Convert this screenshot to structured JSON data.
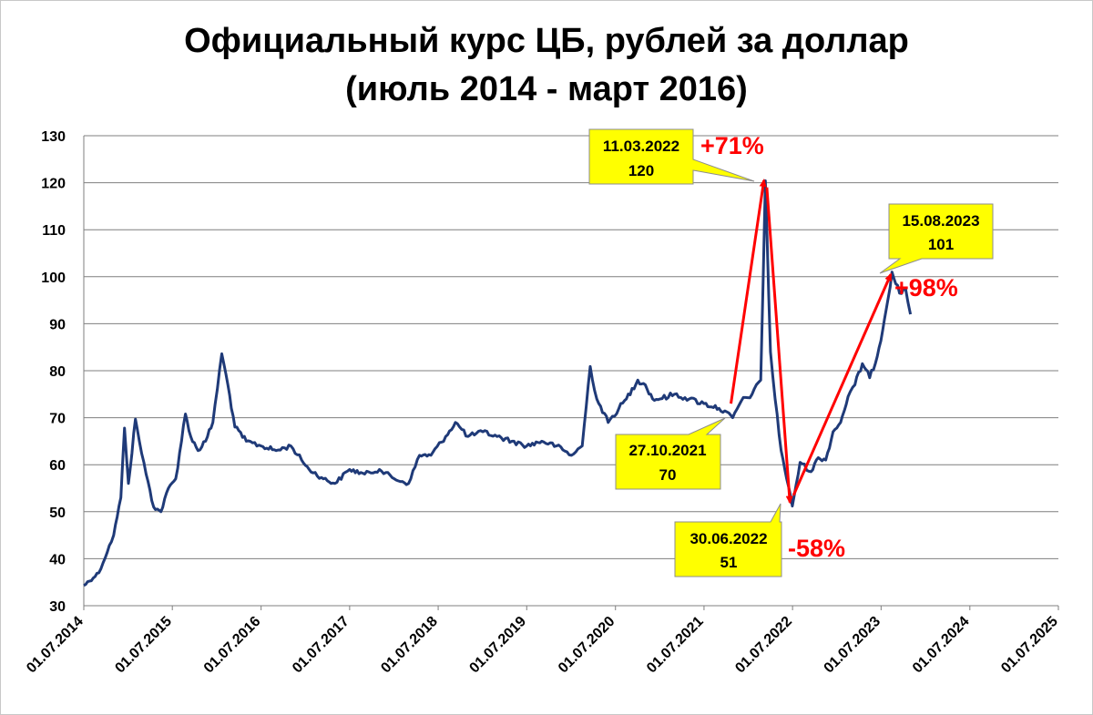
{
  "chart_data": {
    "type": "line",
    "title": "Официальный курс ЦБ, рублей за доллар",
    "subtitle": "(июль 2014 - март 2016)",
    "xlabel": "",
    "ylabel": "",
    "ylim": [
      30,
      130
    ],
    "yticks": [
      30,
      40,
      50,
      60,
      70,
      80,
      90,
      100,
      110,
      120,
      130
    ],
    "xlim": [
      "2014-07-01",
      "2025-07-01"
    ],
    "xtick_labels": [
      "01.07.2014",
      "01.07.2015",
      "01.07.2016",
      "01.07.2017",
      "01.07.2018",
      "01.07.2019",
      "01.07.2020",
      "01.07.2021",
      "01.07.2022",
      "01.07.2023",
      "01.07.2024",
      "01.07.2025"
    ],
    "grid": true,
    "line_color": "#1f3a78",
    "series": [
      {
        "name": "",
        "x": [
          "2014-07-01",
          "2014-09-01",
          "2014-11-01",
          "2014-12-01",
          "2014-12-16",
          "2015-01-01",
          "2015-01-30",
          "2015-02-15",
          "2015-03-15",
          "2015-04-15",
          "2015-05-15",
          "2015-06-15",
          "2015-07-15",
          "2015-08-24",
          "2015-09-15",
          "2015-10-15",
          "2015-11-15",
          "2015-12-15",
          "2016-01-21",
          "2016-02-15",
          "2016-03-15",
          "2016-05-01",
          "2016-07-01",
          "2016-09-01",
          "2016-11-01",
          "2016-12-15",
          "2017-01-15",
          "2017-03-15",
          "2017-05-01",
          "2017-07-01",
          "2017-09-01",
          "2017-11-01",
          "2018-01-01",
          "2018-03-01",
          "2018-04-15",
          "2018-06-01",
          "2018-08-01",
          "2018-09-10",
          "2018-11-01",
          "2019-01-01",
          "2019-03-01",
          "2019-05-01",
          "2019-07-01",
          "2019-09-01",
          "2019-11-01",
          "2020-01-01",
          "2020-02-15",
          "2020-03-19",
          "2020-04-15",
          "2020-06-01",
          "2020-07-15",
          "2020-08-15",
          "2020-10-01",
          "2020-11-01",
          "2020-12-01",
          "2021-01-01",
          "2021-03-01",
          "2021-05-01",
          "2021-07-01",
          "2021-09-01",
          "2021-10-27",
          "2021-12-01",
          "2022-01-15",
          "2022-02-20",
          "2022-03-11",
          "2022-04-01",
          "2022-04-20",
          "2022-05-15",
          "2022-06-30",
          "2022-08-01",
          "2022-09-15",
          "2022-10-15",
          "2022-11-15",
          "2022-12-15",
          "2023-01-15",
          "2023-02-15",
          "2023-03-15",
          "2023-04-15",
          "2023-05-15",
          "2023-06-15",
          "2023-07-15",
          "2023-08-15",
          "2023-09-15",
          "2023-10-10",
          "2023-10-30"
        ],
        "y": [
          34.3,
          37,
          45,
          53,
          67.8,
          56,
          69.7,
          65,
          58,
          51,
          50,
          55,
          57,
          70.8,
          66,
          63,
          65,
          69,
          83.6,
          77,
          68,
          65,
          64,
          63,
          64,
          61,
          59,
          57,
          56,
          59,
          58,
          59,
          57,
          56,
          62,
          62,
          66,
          69,
          66,
          67,
          66,
          65,
          64,
          65,
          64,
          62,
          64,
          80.9,
          74,
          69,
          72,
          74,
          78,
          77,
          74,
          74,
          75,
          74,
          73,
          72,
          70,
          73.5,
          75,
          78,
          120.4,
          84,
          74,
          63,
          51.2,
          60.5,
          58.5,
          61.5,
          61,
          67,
          69,
          74.5,
          77,
          81.5,
          78.5,
          83,
          91,
          101,
          96.5,
          97.5,
          92
        ]
      }
    ],
    "annotations": [
      {
        "date": "11.03.2022",
        "value": "120",
        "change": "+71%"
      },
      {
        "date": "27.10.2021",
        "value": "70"
      },
      {
        "date": "30.06.2022",
        "value": "51",
        "change": "-58%"
      },
      {
        "date": "15.08.2023",
        "value": "101",
        "change": "+98%"
      }
    ]
  },
  "colors": {
    "line": "#1f3a78",
    "arrow": "#ff0000",
    "callout_fill": "#ffff00",
    "grid": "#7f7f7f",
    "change_text": "#ff0000"
  }
}
